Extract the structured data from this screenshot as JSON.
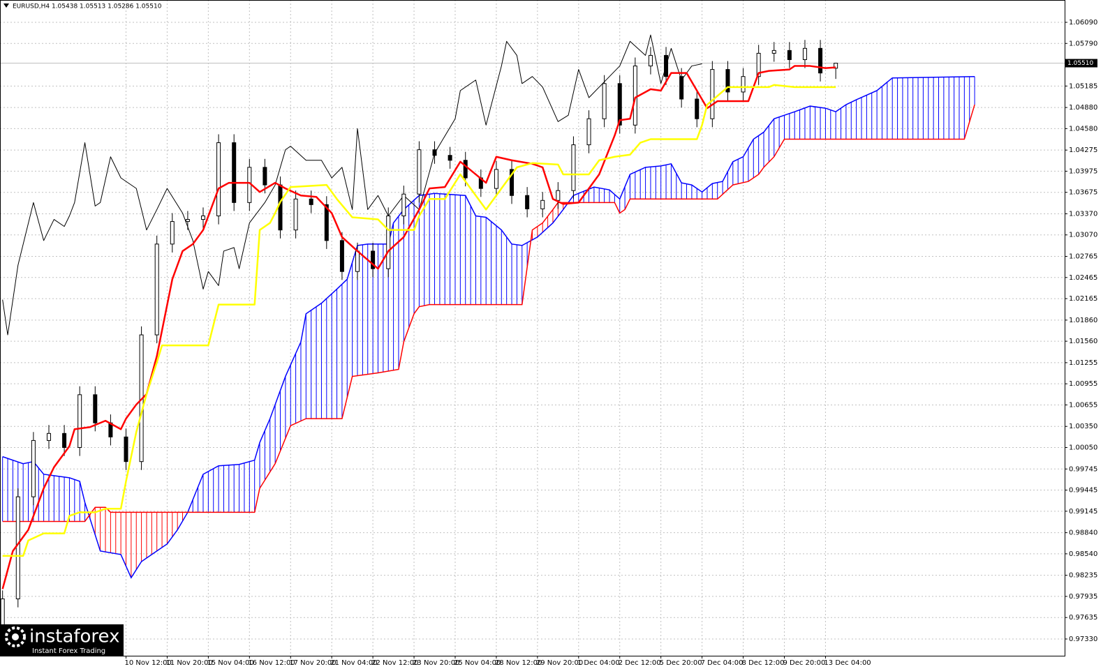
{
  "chart_data": {
    "type": "candlestick",
    "title": "EURUSD,H4  1.05438 1.05513 1.05286 1.05510",
    "ylim": [
      0.97092,
      1.06407
    ],
    "yticks": [
      {
        "value": 1.0609,
        "label": "1.06090"
      },
      {
        "value": 1.0579,
        "label": "1.05790"
      },
      {
        "value": 1.05185,
        "label": "1.05185"
      },
      {
        "value": 1.0488,
        "label": "1.04880"
      },
      {
        "value": 1.0458,
        "label": "1.04580"
      },
      {
        "value": 1.04275,
        "label": "1.04275"
      },
      {
        "value": 1.03975,
        "label": "1.03975"
      },
      {
        "value": 1.03675,
        "label": "1.03675"
      },
      {
        "value": 1.0337,
        "label": "1.03370"
      },
      {
        "value": 1.0307,
        "label": "1.03070"
      },
      {
        "value": 1.02765,
        "label": "1.02765"
      },
      {
        "value": 1.02465,
        "label": "1.02465"
      },
      {
        "value": 1.02165,
        "label": "1.02165"
      },
      {
        "value": 1.0186,
        "label": "1.01860"
      },
      {
        "value": 1.0156,
        "label": "1.01560"
      },
      {
        "value": 1.01255,
        "label": "1.01255"
      },
      {
        "value": 1.00955,
        "label": "1.00955"
      },
      {
        "value": 1.00655,
        "label": "1.00655"
      },
      {
        "value": 1.0035,
        "label": "1.00350"
      },
      {
        "value": 1.0005,
        "label": "1.00050"
      },
      {
        "value": 0.99745,
        "label": "0.99745"
      },
      {
        "value": 0.99445,
        "label": "0.99445"
      },
      {
        "value": 0.99145,
        "label": "0.99145"
      },
      {
        "value": 0.9884,
        "label": "0.98840"
      },
      {
        "value": 0.9854,
        "label": "0.98540"
      },
      {
        "value": 0.98235,
        "label": "0.98235"
      },
      {
        "value": 0.97935,
        "label": "0.97935"
      },
      {
        "value": 0.97635,
        "label": "0.97635"
      },
      {
        "value": 0.9733,
        "label": "0.97330"
      }
    ],
    "xlim": [
      -0.5,
      206.5
    ],
    "xticks": [
      {
        "value": 24,
        "label": "10 Nov 12:00"
      },
      {
        "value": 32,
        "label": "11 Nov 20:00"
      },
      {
        "value": 40,
        "label": "15 Nov 04:00"
      },
      {
        "value": 48,
        "label": "16 Nov 12:00"
      },
      {
        "value": 56,
        "label": "17 Nov 20:00"
      },
      {
        "value": 64,
        "label": "21 Nov 04:00"
      },
      {
        "value": 72,
        "label": "22 Nov 12:00"
      },
      {
        "value": 80,
        "label": "23 Nov 20:00"
      },
      {
        "value": 88,
        "label": "25 Nov 04:00"
      },
      {
        "value": 96,
        "label": "28 Nov 12:00"
      },
      {
        "value": 104,
        "label": "29 Nov 20:00"
      },
      {
        "value": 112,
        "label": "1 Dec 04:00"
      },
      {
        "value": 120,
        "label": "2 Dec 12:00"
      },
      {
        "value": 128,
        "label": "5 Dec 20:00"
      },
      {
        "value": 136,
        "label": "7 Dec 04:00"
      },
      {
        "value": 144,
        "label": "8 Dec 12:00"
      },
      {
        "value": 152,
        "label": "9 Dec 20:00"
      },
      {
        "value": 160,
        "label": "13 Dec 04:00"
      }
    ],
    "grid": true,
    "last_price": {
      "value": 1.0551,
      "label": "1.05510"
    },
    "candles": {
      "x": [
        0,
        3,
        6,
        9,
        12,
        15,
        18,
        21,
        24,
        27,
        30,
        33,
        36,
        39,
        42,
        45,
        48,
        51,
        54,
        57,
        60,
        63,
        66,
        69,
        72,
        75,
        78,
        81,
        84,
        87,
        90,
        93,
        96,
        99,
        102,
        105,
        108,
        111,
        114,
        117,
        120,
        123,
        126,
        129,
        132,
        135,
        138,
        141,
        144,
        147,
        150,
        153,
        156,
        159,
        162
      ],
      "open": [
        0.974,
        0.979,
        0.9935,
        1.0015,
        1.0025,
        1.0005,
        1.008,
        1.004,
        1.002,
        0.9985,
        1.0165,
        1.0294,
        1.0326,
        1.0329,
        1.0334,
        1.0438,
        1.0353,
        1.0403,
        1.0378,
        1.0314,
        1.0358,
        1.035,
        1.0299,
        1.0255,
        1.0284,
        1.0259,
        1.0334,
        1.0365,
        1.0428,
        1.042,
        1.0413,
        1.0388,
        1.0373,
        1.04,
        1.0363,
        1.0344,
        1.0356,
        1.037,
        1.0435,
        1.0472,
        1.0522,
        1.0463,
        1.0547,
        1.0562,
        1.0532,
        1.05,
        1.0472,
        1.0542,
        1.051,
        1.0532,
        1.0565,
        1.0569,
        1.0556,
        1.0572,
        1.05438
      ],
      "high": [
        0.9802,
        0.9947,
        1.0027,
        1.0037,
        1.0037,
        1.0092,
        1.0092,
        1.0052,
        1.0032,
        1.0177,
        1.0306,
        1.0338,
        1.0341,
        1.0346,
        1.045,
        1.045,
        1.0415,
        1.0415,
        1.039,
        1.037,
        1.037,
        1.0362,
        1.0311,
        1.0296,
        1.0296,
        1.0346,
        1.0377,
        1.044,
        1.044,
        1.0432,
        1.0425,
        1.04,
        1.0412,
        1.0412,
        1.0375,
        1.0368,
        1.0382,
        1.0447,
        1.0484,
        1.0534,
        1.0534,
        1.0559,
        1.0574,
        1.0574,
        1.0544,
        1.0512,
        1.0554,
        1.0554,
        1.0544,
        1.0577,
        1.0581,
        1.0581,
        1.0584,
        1.0584,
        1.05513
      ],
      "low": [
        0.9728,
        0.9778,
        0.9923,
        1.0003,
        0.9993,
        0.9993,
        1.0028,
        1.0008,
        0.9973,
        0.9973,
        1.0153,
        1.0282,
        1.0314,
        1.0317,
        1.0322,
        1.0341,
        1.0341,
        1.0366,
        1.0302,
        1.0302,
        1.0338,
        1.0287,
        1.0243,
        1.0243,
        1.0247,
        1.0247,
        1.0322,
        1.0353,
        1.0408,
        1.0401,
        1.0376,
        1.0361,
        1.0361,
        1.0351,
        1.0332,
        1.0332,
        1.0344,
        1.0358,
        1.0423,
        1.046,
        1.0451,
        1.0451,
        1.0535,
        1.052,
        1.0488,
        1.046,
        1.046,
        1.0498,
        1.0498,
        1.052,
        1.0553,
        1.0544,
        1.0544,
        1.0525,
        1.05286
      ],
      "close": [
        0.979,
        0.9935,
        1.0015,
        1.0025,
        1.0005,
        1.008,
        1.004,
        1.002,
        0.9985,
        1.0165,
        1.0294,
        1.0326,
        1.0329,
        1.0334,
        1.0438,
        1.0353,
        1.0403,
        1.0378,
        1.0314,
        1.0358,
        1.035,
        1.0299,
        1.0255,
        1.0284,
        1.0259,
        1.0334,
        1.0365,
        1.0428,
        1.042,
        1.0413,
        1.0388,
        1.0373,
        1.04,
        1.0363,
        1.0344,
        1.0356,
        1.037,
        1.0435,
        1.0472,
        1.0522,
        1.0463,
        1.0547,
        1.0562,
        1.0532,
        1.05,
        1.0472,
        1.0542,
        1.051,
        1.0532,
        1.0565,
        1.0569,
        1.0556,
        1.0572,
        1.0537,
        1.0551
      ]
    },
    "series": [
      {
        "color": "#000000",
        "width": 1,
        "x": [
          0,
          1,
          3,
          6,
          8,
          10,
          12,
          13,
          14,
          16,
          18,
          19,
          21,
          23,
          26,
          28,
          30,
          32,
          35,
          37,
          39,
          40,
          42,
          43,
          45,
          46,
          48,
          51,
          53,
          55,
          56,
          59,
          62,
          64,
          66,
          68,
          69,
          71,
          73,
          75,
          78,
          81,
          84,
          88,
          89,
          92,
          94,
          97,
          98,
          100,
          101,
          103,
          105,
          108,
          110,
          112,
          114,
          118,
          120,
          122,
          125,
          126,
          128,
          130,
          132,
          134,
          136
        ],
        "values": [
          1.0215,
          1.0165,
          1.0264,
          1.0353,
          1.0299,
          1.0329,
          1.0319,
          1.0334,
          1.0353,
          1.0438,
          1.0348,
          1.0353,
          1.0418,
          1.0388,
          1.0373,
          1.0314,
          1.0343,
          1.0373,
          1.0338,
          1.0299,
          1.023,
          1.0255,
          1.0235,
          1.0284,
          1.0289,
          1.0259,
          1.0324,
          1.0353,
          1.0378,
          1.0428,
          1.0433,
          1.0413,
          1.0413,
          1.0388,
          1.0403,
          1.0343,
          1.0458,
          1.0343,
          1.0363,
          1.0334,
          1.0363,
          1.0343,
          1.0423,
          1.0472,
          1.0512,
          1.0527,
          1.0463,
          1.0547,
          1.0582,
          1.0562,
          1.0522,
          1.0532,
          1.0517,
          1.0468,
          1.0477,
          1.0542,
          1.0502,
          1.0532,
          1.0547,
          1.0582,
          1.0562,
          1.0591,
          1.0522,
          1.0572,
          1.0527,
          1.0547,
          1.055
        ]
      },
      {
        "color": "#ff0000",
        "width": 2.5,
        "x": [
          0,
          2,
          5,
          8,
          10,
          13,
          14,
          17,
          20,
          23,
          24,
          26,
          28,
          30,
          33,
          35,
          37,
          39,
          42,
          44,
          48,
          50,
          53,
          55,
          58,
          61,
          64,
          66,
          69,
          73,
          75,
          78,
          81,
          83,
          86,
          89,
          92,
          94,
          96,
          99,
          103,
          105,
          107,
          109,
          112,
          116,
          119,
          120,
          122,
          123,
          126,
          128,
          130,
          133,
          135,
          137,
          139,
          145,
          147,
          149,
          153,
          154,
          157,
          160,
          162
        ],
        "values": [
          0.9804,
          0.9858,
          0.9888,
          0.9947,
          0.9977,
          1.0007,
          1.0031,
          1.0034,
          1.0043,
          1.0031,
          1.0046,
          1.0066,
          1.0081,
          1.0135,
          1.0244,
          1.0284,
          1.0294,
          1.0314,
          1.0373,
          1.0381,
          1.0381,
          1.0368,
          1.0381,
          1.0373,
          1.0363,
          1.0361,
          1.0338,
          1.0304,
          1.0284,
          1.0259,
          1.0284,
          1.0304,
          1.0343,
          1.0373,
          1.0375,
          1.0411,
          1.0393,
          1.0381,
          1.0418,
          1.0413,
          1.0408,
          1.0403,
          1.0358,
          1.0351,
          1.0353,
          1.0393,
          1.0448,
          1.047,
          1.0472,
          1.0502,
          1.0514,
          1.0512,
          1.0537,
          1.0537,
          1.0512,
          1.0487,
          1.0497,
          1.0497,
          1.0537,
          1.054,
          1.0542,
          1.0547,
          1.0547,
          1.0544,
          1.0545
        ]
      },
      {
        "color": "#ffff00",
        "width": 2.5,
        "x": [
          0,
          4,
          5,
          8,
          12,
          13,
          15,
          18,
          20,
          23,
          24,
          26,
          28,
          30,
          31,
          40,
          42,
          49,
          50,
          52,
          53,
          54,
          56,
          63,
          65,
          68,
          73,
          75,
          80,
          81,
          83,
          86,
          89,
          92,
          94,
          97,
          100,
          103,
          108,
          109,
          114,
          116,
          119,
          122,
          124,
          126,
          135,
          136,
          137,
          141,
          149,
          150,
          154,
          162
        ],
        "values": [
          0.9851,
          0.9851,
          0.9873,
          0.9883,
          0.9883,
          0.9908,
          0.9913,
          0.9913,
          0.9918,
          0.9918,
          0.9957,
          1.0027,
          1.0081,
          1.0126,
          1.015,
          1.015,
          1.0208,
          1.0208,
          1.0314,
          1.0324,
          1.0338,
          1.0354,
          1.0375,
          1.0378,
          1.0358,
          1.0332,
          1.0329,
          1.0314,
          1.0314,
          1.0334,
          1.0358,
          1.0358,
          1.0393,
          1.0363,
          1.0343,
          1.0373,
          1.0403,
          1.0409,
          1.0407,
          1.0393,
          1.0393,
          1.0413,
          1.0418,
          1.0421,
          1.0438,
          1.0443,
          1.0443,
          1.0463,
          1.0492,
          1.0517,
          1.0517,
          1.052,
          1.0517,
          1.0517
        ]
      }
    ],
    "cloud": {
      "up_color": "#0000ff",
      "down_color": "#ff0000",
      "a": {
        "color": "#0000ff",
        "width": 1.5,
        "x": [
          0,
          4,
          6,
          8,
          10,
          13,
          15,
          16,
          19,
          23,
          25,
          27,
          29,
          32,
          34,
          36,
          39,
          42,
          46,
          49,
          50,
          52,
          55,
          58,
          59,
          62,
          65,
          67,
          69,
          71,
          75,
          76,
          78,
          81,
          84,
          90,
          92,
          94,
          97,
          99,
          101,
          104,
          107,
          109,
          111,
          115,
          118,
          120,
          122,
          125,
          128,
          130,
          132,
          134,
          136,
          138,
          140,
          142,
          144,
          146,
          148,
          150,
          152,
          154,
          157,
          160,
          162,
          164,
          166,
          170,
          173,
          189
        ],
        "values": [
          0.9992,
          0.9982,
          0.9985,
          0.9967,
          0.9965,
          0.9962,
          0.9957,
          0.9927,
          0.9858,
          0.9853,
          0.982,
          0.9843,
          0.9853,
          0.9868,
          0.9888,
          0.9913,
          0.9967,
          0.9979,
          0.9981,
          0.9987,
          1.0012,
          1.0046,
          1.0106,
          1.0155,
          1.0195,
          1.021,
          1.023,
          1.0244,
          1.0292,
          1.0294,
          1.0294,
          1.0324,
          1.0343,
          1.0363,
          1.0366,
          1.0363,
          1.0334,
          1.0332,
          1.0314,
          1.0294,
          1.0292,
          1.0304,
          1.0324,
          1.0343,
          1.0363,
          1.0375,
          1.0371,
          1.0358,
          1.0393,
          1.0403,
          1.0405,
          1.0408,
          1.0381,
          1.0378,
          1.0368,
          1.038,
          1.0383,
          1.0411,
          1.0418,
          1.0443,
          1.0453,
          1.0472,
          1.0477,
          1.0482,
          1.049,
          1.0487,
          1.0482,
          1.0492,
          1.0499,
          1.0512,
          1.053,
          1.0532
        ]
      },
      "b": {
        "color": "#ff0000",
        "width": 1.5,
        "x": [
          0,
          16,
          18,
          20,
          21,
          49,
          50,
          53,
          56,
          59,
          66,
          68,
          73,
          77,
          78,
          80,
          81,
          83,
          101,
          103,
          105,
          107,
          108,
          112,
          119,
          120,
          121,
          122,
          139,
          142,
          145,
          147,
          148,
          150,
          152,
          187,
          189
        ],
        "values": [
          0.99,
          0.99,
          0.992,
          0.992,
          0.9913,
          0.9913,
          0.9947,
          0.9982,
          1.0036,
          1.0046,
          1.0046,
          1.0106,
          1.0111,
          1.0116,
          1.0155,
          1.0195,
          1.0205,
          1.0208,
          1.0208,
          1.0314,
          1.0324,
          1.0343,
          1.0353,
          1.0353,
          1.0353,
          1.0338,
          1.0343,
          1.0358,
          1.0358,
          1.0378,
          1.0383,
          1.0393,
          1.0403,
          1.0418,
          1.0443,
          1.0443,
          1.0492
        ]
      }
    },
    "watermark": {
      "name": "instaforex",
      "tagline": "Instant Forex Trading"
    }
  }
}
